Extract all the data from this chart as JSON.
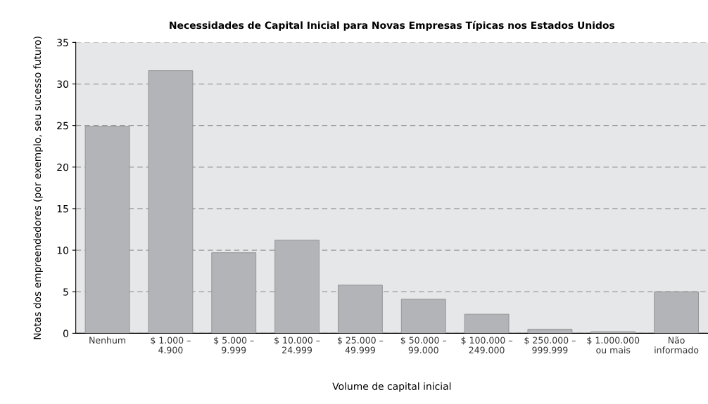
{
  "chart_data": {
    "type": "bar",
    "title": "Necessidades de Capital Inicial para Novas Empresas Típicas nos Estados Unidos",
    "xlabel": "Volume de capital inicial",
    "ylabel": "Notas dos empreendedores (por exemplo, seu sucesso futuro)",
    "categories": [
      "Nenhum",
      "$ 1.000 –\n4.900",
      "$ 5.000 –\n9.999",
      "$ 10.000 –\n24.999",
      "$ 25.000 –\n49.999",
      "$ 50.000 –\n99.000",
      "$ 100.000 –\n249.000",
      "$ 250.000 –\n999.999",
      "$ 1.000.000\nou mais",
      "Não\ninformado"
    ],
    "values": [
      24.9,
      31.6,
      9.7,
      11.2,
      5.8,
      4.1,
      2.3,
      0.5,
      0.2,
      5.0
    ],
    "color": "#b3b4b7",
    "ylim": [
      0,
      35
    ],
    "yticks": [
      0,
      5,
      10,
      15,
      20,
      25,
      30,
      35
    ],
    "grid": "y"
  }
}
